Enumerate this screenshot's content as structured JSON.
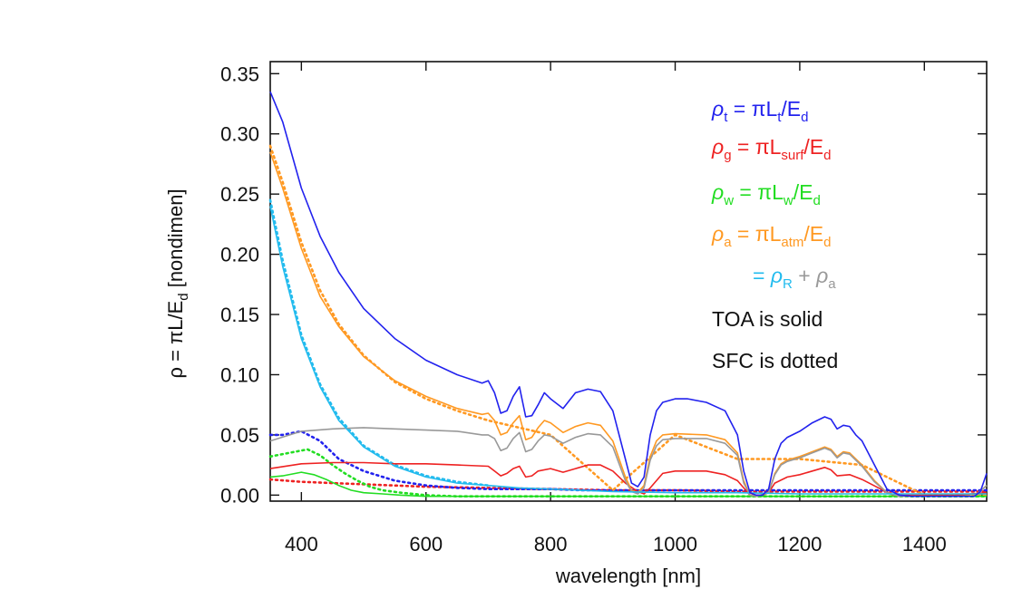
{
  "chart_data": {
    "type": "line",
    "title": "",
    "xlabel": {
      "base": "wavelength [nm]"
    },
    "ylabel": {
      "prefix": "ρ = πL/E",
      "sub": "d",
      "suffix": " [nondimen]"
    },
    "xlim": [
      350,
      1500
    ],
    "ylim": [
      -0.005,
      0.36
    ],
    "xticks": [
      400,
      600,
      800,
      1000,
      1200,
      1400
    ],
    "xtick_labels": [
      "400",
      "600",
      "800",
      "1000",
      "1200",
      "1400"
    ],
    "yticks": [
      0.0,
      0.05,
      0.1,
      0.15,
      0.2,
      0.25,
      0.3,
      0.35
    ],
    "ytick_labels": [
      "0.00",
      "0.05",
      "0.10",
      "0.15",
      "0.20",
      "0.25",
      "0.30",
      "0.35"
    ],
    "grid": false,
    "legend": {
      "placement": "top-right",
      "entries": [
        {
          "sym": "ρ",
          "sym_sub": "t",
          "eq": " = πL",
          "eq_sub": "t",
          "tail": "/E",
          "tail_sub": "d",
          "color": "#2222ee"
        },
        {
          "sym": "ρ",
          "sym_sub": "g",
          "eq": " = πL",
          "eq_sub": "surf",
          "tail": "/E",
          "tail_sub": "d",
          "color": "#ee2222"
        },
        {
          "sym": "ρ",
          "sym_sub": "w",
          "eq": " = πL",
          "eq_sub": "w",
          "tail": "/E",
          "tail_sub": "d",
          "color": "#22dd22"
        },
        {
          "sym": "ρ",
          "sym_sub": "a",
          "eq": " = πL",
          "eq_sub": "atm",
          "tail": "/E",
          "tail_sub": "d",
          "color": "#ff9922"
        }
      ],
      "rayleigh_line": {
        "prefix": "= ",
        "sym": "ρ",
        "sym_sub": "R",
        "color": "#22bbee",
        "plus": " + ",
        "sym2": "ρ",
        "sym2_sub": "a",
        "color2": "#999999"
      },
      "notes": [
        "TOA is solid",
        "SFC is dotted"
      ]
    },
    "series": [
      {
        "name": "ρt = πLt/Ed",
        "style": "solid",
        "color": "#2222ee",
        "x": [
          350,
          370,
          400,
          430,
          460,
          500,
          550,
          600,
          650,
          690,
          700,
          710,
          720,
          730,
          740,
          750,
          760,
          770,
          780,
          790,
          800,
          820,
          840,
          860,
          880,
          900,
          920,
          930,
          940,
          950,
          960,
          970,
          980,
          1000,
          1020,
          1050,
          1080,
          1100,
          1110,
          1120,
          1130,
          1140,
          1150,
          1160,
          1170,
          1180,
          1200,
          1220,
          1240,
          1250,
          1260,
          1270,
          1280,
          1290,
          1300,
          1320,
          1340,
          1360,
          1380,
          1400,
          1420,
          1450,
          1480,
          1490,
          1500
        ],
        "y": [
          0.335,
          0.31,
          0.255,
          0.215,
          0.185,
          0.155,
          0.13,
          0.112,
          0.1,
          0.093,
          0.095,
          0.085,
          0.068,
          0.07,
          0.082,
          0.09,
          0.065,
          0.066,
          0.075,
          0.085,
          0.08,
          0.072,
          0.085,
          0.088,
          0.086,
          0.07,
          0.03,
          0.01,
          0.007,
          0.015,
          0.05,
          0.07,
          0.077,
          0.08,
          0.08,
          0.077,
          0.07,
          0.05,
          0.02,
          0.002,
          0.0,
          0.0,
          0.005,
          0.03,
          0.043,
          0.048,
          0.053,
          0.06,
          0.065,
          0.063,
          0.055,
          0.058,
          0.057,
          0.05,
          0.045,
          0.025,
          0.005,
          0.0,
          -0.001,
          -0.001,
          -0.001,
          -0.001,
          -0.001,
          0.003,
          0.018
        ]
      },
      {
        "name": "ρt SFC",
        "style": "dotted",
        "color": "#2222ee",
        "x": [
          350,
          370,
          400,
          430,
          460,
          500,
          550,
          600,
          650,
          700,
          750,
          800,
          850,
          900,
          950,
          1000,
          1050,
          1100,
          1150,
          1200,
          1250,
          1300,
          1350,
          1400,
          1450,
          1500
        ],
        "y": [
          0.05,
          0.05,
          0.053,
          0.045,
          0.03,
          0.02,
          0.012,
          0.008,
          0.006,
          0.005,
          0.005,
          0.005,
          0.004,
          0.004,
          0.004,
          0.004,
          0.004,
          0.004,
          0.004,
          0.004,
          0.004,
          0.004,
          0.004,
          0.004,
          0.004,
          0.004
        ]
      },
      {
        "name": "ρg = πLsurf/Ed",
        "style": "solid",
        "color": "#ee2222",
        "x": [
          350,
          400,
          450,
          500,
          550,
          600,
          650,
          700,
          710,
          720,
          730,
          740,
          750,
          760,
          770,
          780,
          800,
          820,
          840,
          860,
          880,
          900,
          920,
          940,
          950,
          960,
          980,
          1000,
          1050,
          1080,
          1100,
          1120,
          1140,
          1150,
          1160,
          1180,
          1200,
          1220,
          1240,
          1250,
          1260,
          1280,
          1300,
          1330,
          1350,
          1400,
          1450,
          1500
        ],
        "y": [
          0.022,
          0.026,
          0.027,
          0.027,
          0.026,
          0.026,
          0.025,
          0.024,
          0.02,
          0.016,
          0.018,
          0.022,
          0.024,
          0.015,
          0.016,
          0.02,
          0.022,
          0.019,
          0.022,
          0.025,
          0.025,
          0.02,
          0.01,
          0.003,
          0.001,
          0.006,
          0.018,
          0.02,
          0.02,
          0.017,
          0.012,
          0.0,
          0.0,
          0.002,
          0.01,
          0.015,
          0.017,
          0.02,
          0.023,
          0.021,
          0.016,
          0.017,
          0.013,
          0.005,
          0.0,
          0.0,
          0.0,
          0.002
        ]
      },
      {
        "name": "ρg SFC",
        "style": "dotted",
        "color": "#ee2222",
        "x": [
          350,
          400,
          500,
          600,
          700,
          800,
          900,
          1000,
          1100,
          1200,
          1300,
          1400,
          1500
        ],
        "y": [
          0.013,
          0.011,
          0.009,
          0.007,
          0.006,
          0.005,
          0.004,
          0.004,
          0.003,
          0.003,
          0.003,
          0.003,
          0.003
        ]
      },
      {
        "name": "ρw = πLw/Ed",
        "style": "solid",
        "color": "#22dd22",
        "x": [
          350,
          370,
          400,
          420,
          440,
          460,
          480,
          500,
          530,
          560,
          600,
          650,
          700,
          800,
          900,
          1000,
          1100,
          1200,
          1300,
          1400,
          1500
        ],
        "y": [
          0.015,
          0.016,
          0.019,
          0.017,
          0.013,
          0.008,
          0.004,
          0.002,
          0.001,
          0.0,
          -0.001,
          -0.001,
          -0.001,
          -0.001,
          -0.001,
          -0.001,
          -0.001,
          -0.001,
          -0.001,
          -0.001,
          -0.001
        ]
      },
      {
        "name": "ρw SFC",
        "style": "dotted",
        "color": "#22dd22",
        "x": [
          350,
          380,
          410,
          430,
          450,
          470,
          490,
          510,
          530,
          560,
          600,
          650,
          700,
          800,
          900,
          1000,
          1100,
          1200,
          1300,
          1400,
          1500
        ],
        "y": [
          0.032,
          0.035,
          0.038,
          0.033,
          0.025,
          0.018,
          0.012,
          0.007,
          0.004,
          0.002,
          0.0,
          -0.001,
          -0.001,
          -0.001,
          -0.001,
          -0.001,
          -0.001,
          -0.001,
          -0.001,
          -0.001,
          -0.001
        ]
      },
      {
        "name": "ρa = πLatm/Ed",
        "style": "solid",
        "color": "#ff9922",
        "x": [
          350,
          370,
          400,
          430,
          460,
          500,
          550,
          600,
          650,
          690,
          700,
          710,
          720,
          730,
          740,
          750,
          760,
          770,
          780,
          790,
          800,
          820,
          840,
          860,
          880,
          900,
          920,
          930,
          940,
          950,
          960,
          970,
          980,
          1000,
          1050,
          1080,
          1100,
          1110,
          1120,
          1130,
          1150,
          1160,
          1170,
          1180,
          1200,
          1220,
          1240,
          1250,
          1260,
          1270,
          1280,
          1290,
          1300,
          1320,
          1340,
          1360,
          1400,
          1450,
          1480,
          1500
        ],
        "y": [
          0.285,
          0.255,
          0.205,
          0.165,
          0.14,
          0.115,
          0.095,
          0.082,
          0.072,
          0.067,
          0.068,
          0.062,
          0.05,
          0.052,
          0.06,
          0.066,
          0.046,
          0.048,
          0.056,
          0.062,
          0.06,
          0.052,
          0.057,
          0.06,
          0.058,
          0.045,
          0.015,
          0.004,
          0.002,
          0.008,
          0.032,
          0.045,
          0.05,
          0.051,
          0.05,
          0.046,
          0.035,
          0.012,
          0.0,
          -0.001,
          0.002,
          0.018,
          0.026,
          0.029,
          0.032,
          0.036,
          0.04,
          0.038,
          0.032,
          0.036,
          0.035,
          0.03,
          0.025,
          0.012,
          0.002,
          -0.001,
          -0.001,
          -0.001,
          -0.001,
          0.008
        ]
      },
      {
        "name": "ρa SFC",
        "style": "dotted",
        "color": "#ff9922",
        "x": [
          350,
          370,
          400,
          430,
          460,
          500,
          550,
          600,
          650,
          700,
          800,
          900,
          1000,
          1100,
          1200,
          1300,
          1400,
          1500
        ],
        "y": [
          0.29,
          0.26,
          0.21,
          0.17,
          0.142,
          0.116,
          0.094,
          0.08,
          0.07,
          0.062,
          0.05,
          0.004,
          0.05,
          0.03,
          0.03,
          0.025,
          0.0,
          0.0
        ]
      },
      {
        "name": "ρR",
        "style": "solid",
        "color": "#22bbee",
        "x": [
          350,
          370,
          400,
          430,
          460,
          500,
          550,
          600,
          650,
          700,
          750,
          800,
          900,
          1000,
          1100,
          1200,
          1300,
          1400,
          1500
        ],
        "y": [
          0.24,
          0.19,
          0.13,
          0.09,
          0.062,
          0.04,
          0.024,
          0.015,
          0.01,
          0.008,
          0.006,
          0.005,
          0.003,
          0.002,
          0.002,
          0.001,
          0.001,
          0.001,
          0.001
        ]
      },
      {
        "name": "ρR SFC",
        "style": "dotted",
        "color": "#22bbee",
        "x": [
          350,
          370,
          400,
          430,
          460,
          500,
          550,
          600,
          650,
          700
        ],
        "y": [
          0.245,
          0.195,
          0.133,
          0.092,
          0.064,
          0.041,
          0.025,
          0.016,
          0.011,
          0.008
        ]
      },
      {
        "name": "ρa aerosol",
        "style": "solid",
        "color": "#999999",
        "x": [
          350,
          400,
          450,
          500,
          550,
          600,
          650,
          690,
          700,
          710,
          720,
          730,
          740,
          750,
          760,
          770,
          780,
          790,
          800,
          820,
          840,
          860,
          880,
          900,
          920,
          930,
          940,
          950,
          960,
          970,
          980,
          1000,
          1050,
          1080,
          1100,
          1110,
          1120,
          1130,
          1150,
          1160,
          1170,
          1180,
          1200,
          1220,
          1240,
          1250,
          1260,
          1270,
          1280,
          1290,
          1300,
          1320,
          1340,
          1360,
          1400,
          1450,
          1480,
          1500
        ],
        "y": [
          0.045,
          0.053,
          0.055,
          0.056,
          0.055,
          0.054,
          0.053,
          0.05,
          0.05,
          0.047,
          0.037,
          0.039,
          0.047,
          0.052,
          0.036,
          0.038,
          0.045,
          0.05,
          0.049,
          0.043,
          0.048,
          0.051,
          0.05,
          0.04,
          0.012,
          0.003,
          0.001,
          0.006,
          0.029,
          0.041,
          0.046,
          0.047,
          0.047,
          0.043,
          0.033,
          0.01,
          0.0,
          -0.001,
          0.002,
          0.017,
          0.025,
          0.028,
          0.031,
          0.035,
          0.039,
          0.037,
          0.031,
          0.035,
          0.034,
          0.029,
          0.024,
          0.011,
          0.002,
          -0.001,
          -0.001,
          -0.001,
          -0.001,
          0.008
        ]
      }
    ]
  }
}
